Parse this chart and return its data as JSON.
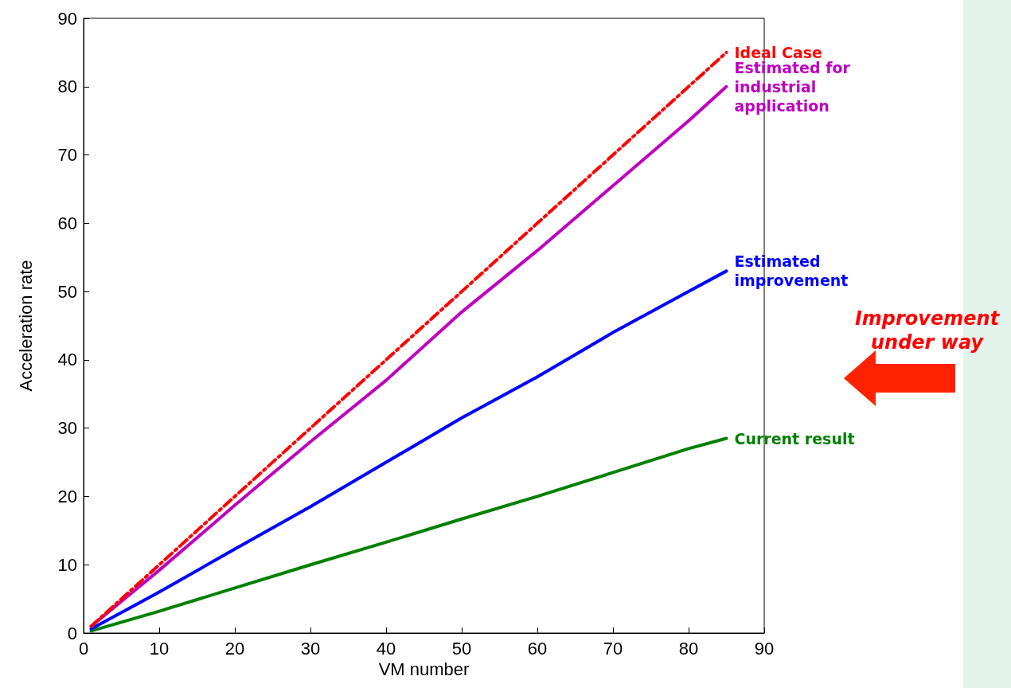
{
  "chart_data": {
    "type": "line",
    "xlabel": "VM number",
    "ylabel": "Acceleration rate",
    "x": [
      1,
      10,
      20,
      30,
      40,
      50,
      60,
      70,
      80,
      85
    ],
    "series": [
      {
        "name": "Ideal Case",
        "color": "#ff0000",
        "line_style": "dashed",
        "values": [
          1,
          10,
          20,
          30,
          40,
          50,
          60,
          70,
          80,
          85
        ]
      },
      {
        "name": "Estimated for industrial application",
        "color": "#bf00bf",
        "values": [
          1,
          9.2,
          18.7,
          28,
          37,
          47,
          56,
          65.5,
          75,
          80
        ]
      },
      {
        "name": "Estimated improvement",
        "color": "#0000ff",
        "values": [
          0.6,
          6,
          12.3,
          18.5,
          25,
          31.5,
          37.5,
          44,
          50,
          53
        ]
      },
      {
        "name": "Current result",
        "color": "#008000",
        "values": [
          0.3,
          3.2,
          6.6,
          10,
          13.3,
          16.7,
          20,
          23.5,
          27,
          28.5
        ]
      }
    ],
    "xlim": [
      0,
      90
    ],
    "xticks": [
      0,
      10,
      20,
      30,
      40,
      50,
      60,
      70,
      80,
      90
    ],
    "ylim": [
      0,
      90
    ],
    "yticks": [
      0,
      10,
      20,
      30,
      40,
      50,
      60,
      70,
      80,
      90
    ],
    "grid": false,
    "legend": false,
    "marker": "none",
    "line_style": "solid",
    "annotations": [
      "Improvement under way"
    ]
  }
}
